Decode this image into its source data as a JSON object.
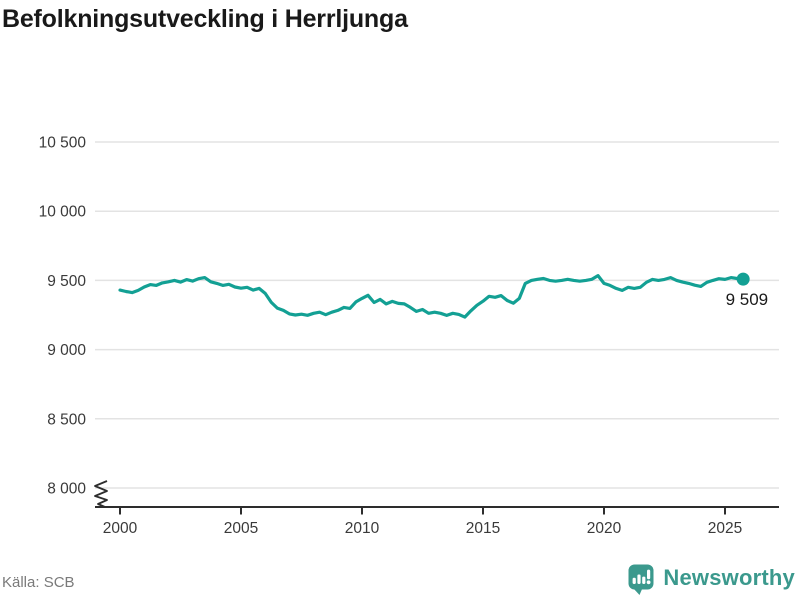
{
  "title": "Befolkningsutveckling i Herrljunga",
  "source": "Källa: SCB",
  "brand": {
    "name": "Newsworthy",
    "color": "#3b998d",
    "icon": "newsworthy-speech-bubble-barchart-icon"
  },
  "colors": {
    "line": "#13a094",
    "end_dot": "#13a094",
    "grid": "#e3e3e3",
    "axis": "#2d2d2d",
    "tick_text": "#3a3a3a",
    "annotation_text": "#1a1a1a",
    "title_text": "#191919",
    "muted_text": "#7a7a7a"
  },
  "chart_data": {
    "type": "line",
    "title": "Befolkningsutveckling i Herrljunga",
    "series_name": "Befolkning i Herrljunga",
    "xlabel": "",
    "ylabel": "",
    "grid": "horizontal",
    "legend": "none",
    "axis_break_at_bottom": true,
    "ylim": [
      8000,
      10500
    ],
    "xlim": [
      2000,
      2026
    ],
    "x_ticks": [
      2000,
      2005,
      2010,
      2015,
      2020,
      2025
    ],
    "x_tick_labels": [
      "2000",
      "2005",
      "2010",
      "2015",
      "2020",
      "2025"
    ],
    "y_ticks": [
      8000,
      8500,
      9000,
      9500,
      10000,
      10500
    ],
    "y_tick_labels": [
      "8 000",
      "8 500",
      "9 000",
      "9 500",
      "10 000",
      "10 500"
    ],
    "last_value": 9509,
    "last_point_label": "9 509",
    "x": [
      2000,
      2000.25,
      2000.5,
      2000.75,
      2001,
      2001.25,
      2001.5,
      2001.75,
      2002,
      2002.25,
      2002.5,
      2002.75,
      2003,
      2003.25,
      2003.5,
      2003.75,
      2004,
      2004.25,
      2004.5,
      2004.75,
      2005,
      2005.25,
      2005.5,
      2005.75,
      2006,
      2006.25,
      2006.5,
      2006.75,
      2007,
      2007.25,
      2007.5,
      2007.75,
      2008,
      2008.25,
      2008.5,
      2008.75,
      2009,
      2009.25,
      2009.5,
      2009.75,
      2010,
      2010.25,
      2010.5,
      2010.75,
      2011,
      2011.25,
      2011.5,
      2011.75,
      2012,
      2012.25,
      2012.5,
      2012.75,
      2013,
      2013.25,
      2013.5,
      2013.75,
      2014,
      2014.25,
      2014.5,
      2014.75,
      2015,
      2015.25,
      2015.5,
      2015.75,
      2016,
      2016.25,
      2016.5,
      2016.75,
      2017,
      2017.25,
      2017.5,
      2017.75,
      2018,
      2018.25,
      2018.5,
      2018.75,
      2019,
      2019.25,
      2019.5,
      2019.75,
      2020,
      2020.25,
      2020.5,
      2020.75,
      2021,
      2021.25,
      2021.5,
      2021.75,
      2022,
      2022.25,
      2022.5,
      2022.75,
      2023,
      2023.25,
      2023.5,
      2023.75,
      2024,
      2024.25,
      2024.5,
      2024.75,
      2025,
      2025.25,
      2025.5,
      2025.75
    ],
    "values": [
      9430,
      9420,
      9412,
      9428,
      9452,
      9470,
      9464,
      9482,
      9490,
      9500,
      9488,
      9506,
      9495,
      9512,
      9520,
      9490,
      9478,
      9464,
      9472,
      9452,
      9444,
      9450,
      9430,
      9442,
      9406,
      9341,
      9300,
      9283,
      9258,
      9250,
      9256,
      9248,
      9262,
      9270,
      9252,
      9270,
      9283,
      9305,
      9298,
      9345,
      9370,
      9392,
      9340,
      9363,
      9330,
      9348,
      9334,
      9330,
      9305,
      9276,
      9290,
      9262,
      9270,
      9262,
      9247,
      9262,
      9254,
      9235,
      9280,
      9320,
      9350,
      9385,
      9378,
      9390,
      9355,
      9335,
      9370,
      9478,
      9500,
      9508,
      9514,
      9500,
      9494,
      9500,
      9508,
      9500,
      9494,
      9500,
      9508,
      9535,
      9478,
      9464,
      9442,
      9428,
      9450,
      9442,
      9450,
      9486,
      9507,
      9500,
      9507,
      9520,
      9500,
      9488,
      9478,
      9465,
      9457,
      9486,
      9500,
      9512,
      9507,
      9520,
      9514,
      9509
    ]
  }
}
